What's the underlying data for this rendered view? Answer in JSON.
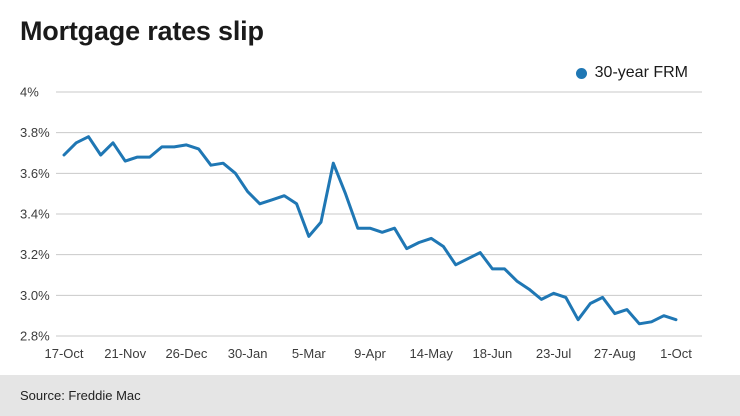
{
  "title": "Mortgage rates slip",
  "legend": {
    "label": "30-year FRM",
    "color": "#1f77b4"
  },
  "source": "Source: Freddie Mac",
  "chart_data": {
    "type": "line",
    "title": "Mortgage rates slip",
    "xlabel": "",
    "ylabel": "",
    "ylim": [
      2.8,
      4.0
    ],
    "y_ticks": [
      4.0,
      3.8,
      3.6,
      3.4,
      3.2,
      3.0,
      2.8
    ],
    "y_tick_labels": [
      "4%",
      "3.8%",
      "3.6%",
      "3.4%",
      "3.2%",
      "3.0%",
      "2.8%"
    ],
    "x_tick_labels": [
      "17-Oct",
      "21-Nov",
      "26-Dec",
      "30-Jan",
      "5-Mar",
      "9-Apr",
      "14-May",
      "18-Jun",
      "23-Jul",
      "27-Aug",
      "1-Oct"
    ],
    "x_tick_every": 5,
    "grid": "horizontal",
    "legend_position": "top-right",
    "line_color": "#1f77b4",
    "series": [
      {
        "name": "30-year FRM",
        "values": [
          3.69,
          3.75,
          3.78,
          3.69,
          3.75,
          3.66,
          3.68,
          3.68,
          3.73,
          3.73,
          3.74,
          3.72,
          3.64,
          3.65,
          3.6,
          3.51,
          3.45,
          3.47,
          3.49,
          3.45,
          3.29,
          3.36,
          3.65,
          3.5,
          3.33,
          3.33,
          3.31,
          3.33,
          3.23,
          3.26,
          3.28,
          3.24,
          3.15,
          3.18,
          3.21,
          3.13,
          3.13,
          3.07,
          3.03,
          2.98,
          3.01,
          2.99,
          2.88,
          2.96,
          2.99,
          2.91,
          2.93,
          2.86,
          2.87,
          2.9,
          2.88
        ]
      }
    ]
  }
}
